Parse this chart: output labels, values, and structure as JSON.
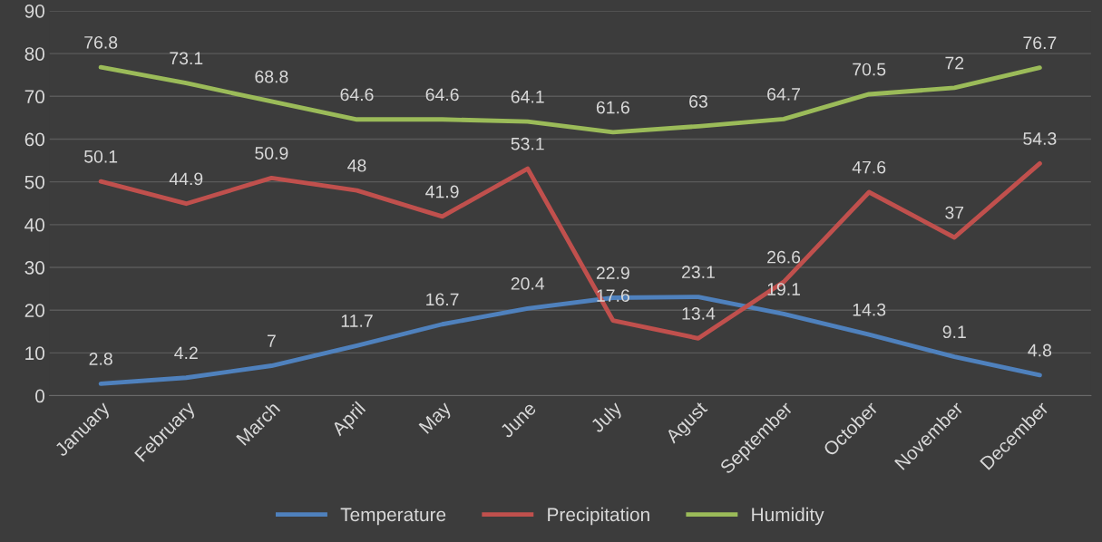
{
  "chart_data": {
    "type": "line",
    "categories": [
      "January",
      "February",
      "March",
      "April",
      "May",
      "June",
      "July",
      "Agust",
      "September",
      "October",
      "November",
      "December"
    ],
    "series": [
      {
        "name": "Temperature",
        "color": "#4f81bd",
        "values": [
          2.8,
          4.2,
          7,
          11.7,
          16.7,
          20.4,
          22.9,
          23.1,
          19.1,
          14.3,
          9.1,
          4.8
        ]
      },
      {
        "name": "Precipitation",
        "color": "#c0504d",
        "values": [
          50.1,
          44.9,
          50.9,
          48,
          41.9,
          53.1,
          17.6,
          13.4,
          26.6,
          47.6,
          37,
          54.3
        ]
      },
      {
        "name": "Humidity",
        "color": "#9bbb59",
        "values": [
          76.8,
          73.1,
          68.8,
          64.6,
          64.6,
          64.1,
          61.6,
          63,
          64.7,
          70.5,
          72,
          76.7
        ]
      }
    ],
    "ylim": [
      0,
      90
    ],
    "yticks": [
      0,
      10,
      20,
      30,
      40,
      50,
      60,
      70,
      80,
      90
    ],
    "grid": "y",
    "legend": "bottom",
    "data_labels": true,
    "marker": "none",
    "line_style": "solid"
  }
}
